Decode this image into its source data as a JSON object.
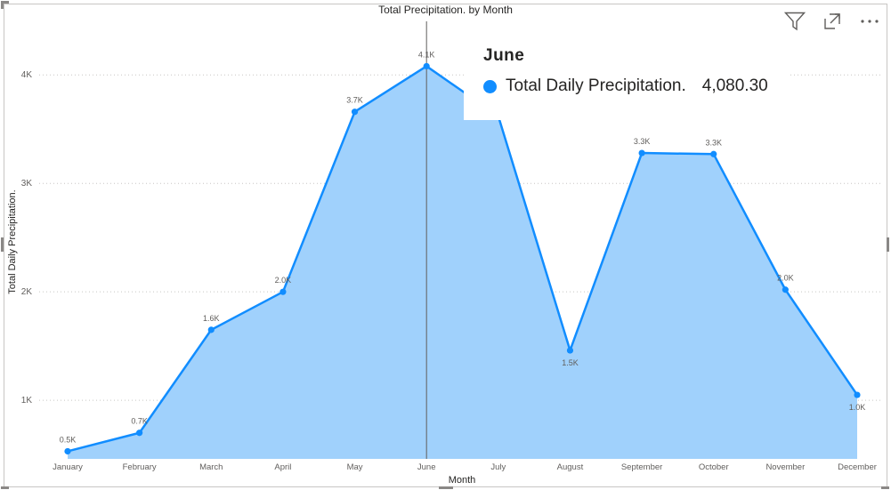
{
  "chart_data": {
    "type": "area",
    "title": "Total Precipitation. by Month",
    "xlabel": "Month",
    "ylabel": "Total Daily Precipitation.",
    "categories": [
      "January",
      "February",
      "March",
      "April",
      "May",
      "June",
      "July",
      "August",
      "September",
      "October",
      "November",
      "December"
    ],
    "series": [
      {
        "name": "Total Daily Precipitation.",
        "values": [
          530,
          700,
          1650,
          2000,
          3660,
          4080.3,
          3620,
          1460,
          3280,
          3270,
          2020,
          1050
        ],
        "data_labels": [
          "0.5K",
          "0.7K",
          "1.6K",
          "2.0K",
          "3.7K",
          "4.1K",
          "",
          "1.5K",
          "3.3K",
          "3.3K",
          "2.0K",
          "1.0K"
        ],
        "line_color": "#118DFF",
        "fill_color": "#A0D1FC"
      }
    ],
    "yticks": [
      1000,
      2000,
      3000,
      4000
    ],
    "ytick_labels": [
      "1K",
      "2K",
      "3K",
      "4K"
    ],
    "ylim": [
      460,
      4330
    ],
    "grid": true
  },
  "tooltip": {
    "title": "June",
    "series_label": "Total Daily Precipitation.",
    "value": "4,080.30"
  },
  "hover": {
    "category": "June"
  },
  "toolbar": {
    "filter_icon": "filter-icon",
    "focus_icon": "focus-mode-icon",
    "more_icon": "more-options-icon"
  }
}
